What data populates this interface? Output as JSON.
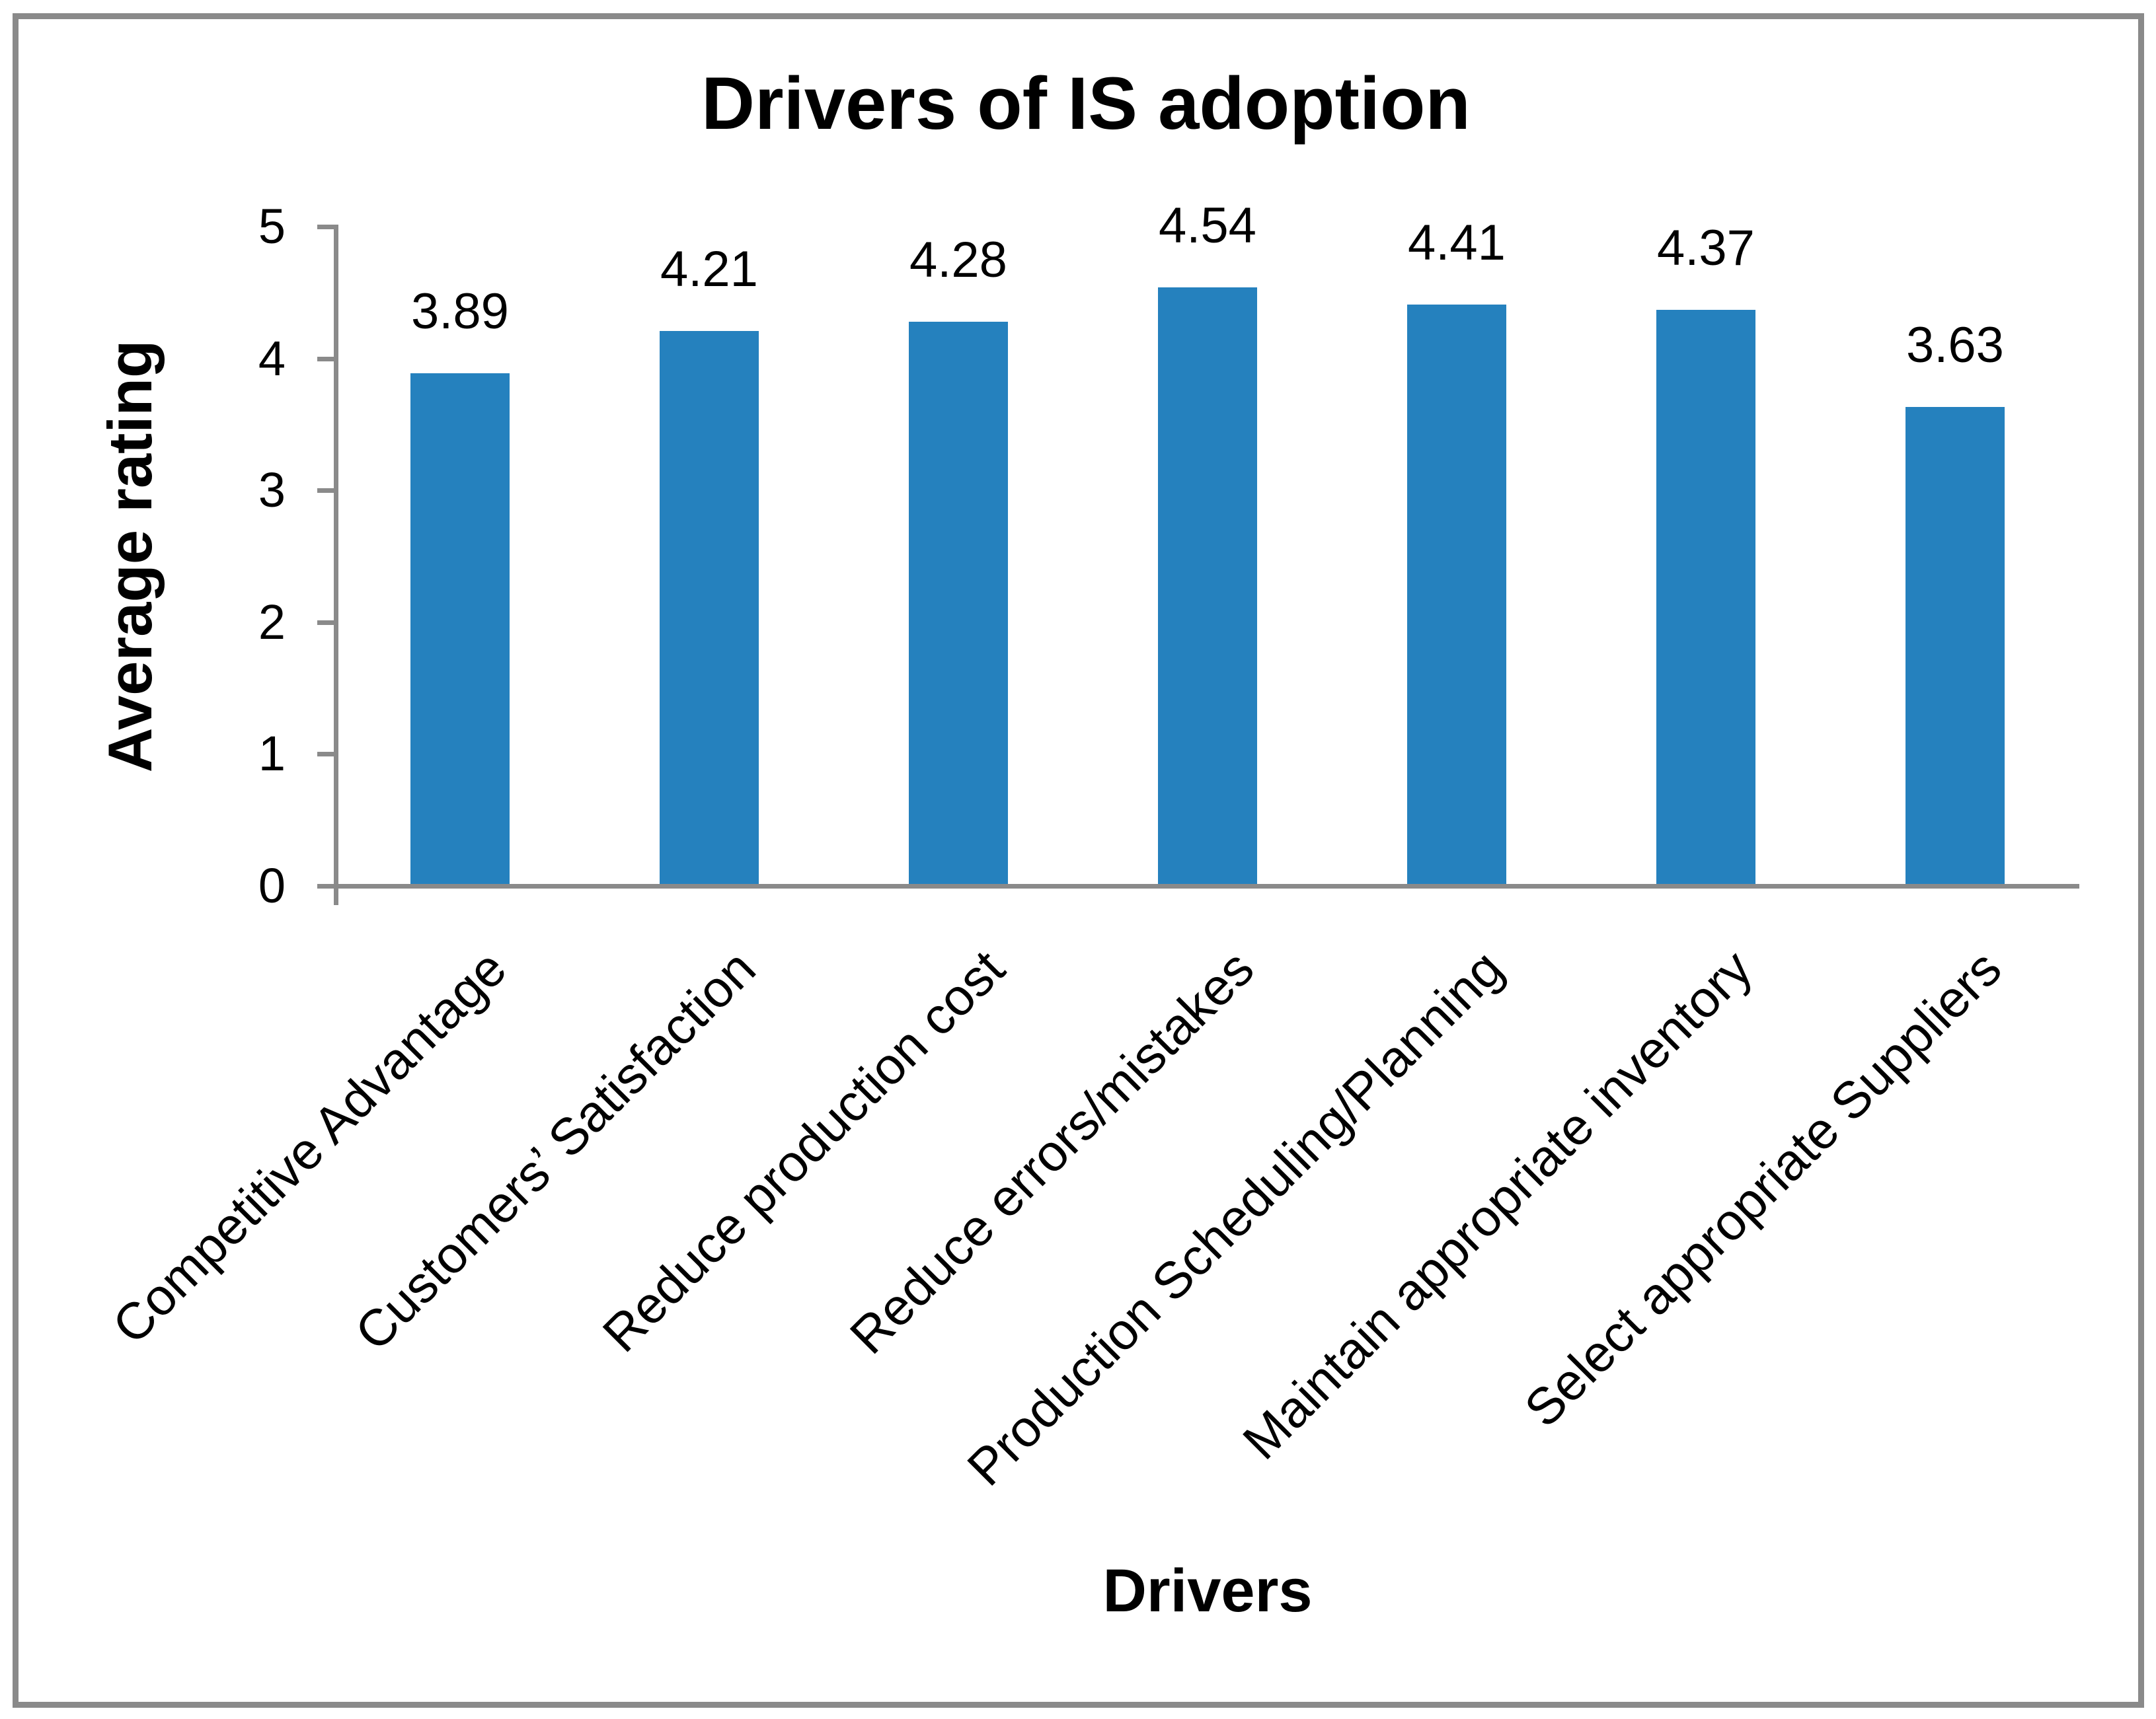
{
  "chart_data": {
    "type": "bar",
    "title": "Drivers of IS adoption",
    "xlabel": "Drivers",
    "ylabel": "Average rating",
    "categories": [
      "Competitive Advantage",
      "Customers’ Satisfaction",
      "Reduce production cost",
      "Reduce errors/mistakes",
      "Production Scheduling/Planning",
      "Maintain appropriate inventory",
      "Select appropriate Suppliers"
    ],
    "values": [
      3.89,
      4.21,
      4.28,
      4.54,
      4.41,
      4.37,
      3.63
    ],
    "value_labels": [
      "3.89",
      "4.21",
      "4.28",
      "4.54",
      "4.41",
      "4.37",
      "3.63"
    ],
    "ylim": [
      0,
      5
    ],
    "yticks": [
      0,
      1,
      2,
      3,
      4,
      5
    ],
    "grid": false,
    "legend_position": "none",
    "bar_color": "#2581BE",
    "axis_color": "#8A8A8A",
    "frame_color": "#8A8A8A",
    "text_color": "#000000"
  }
}
